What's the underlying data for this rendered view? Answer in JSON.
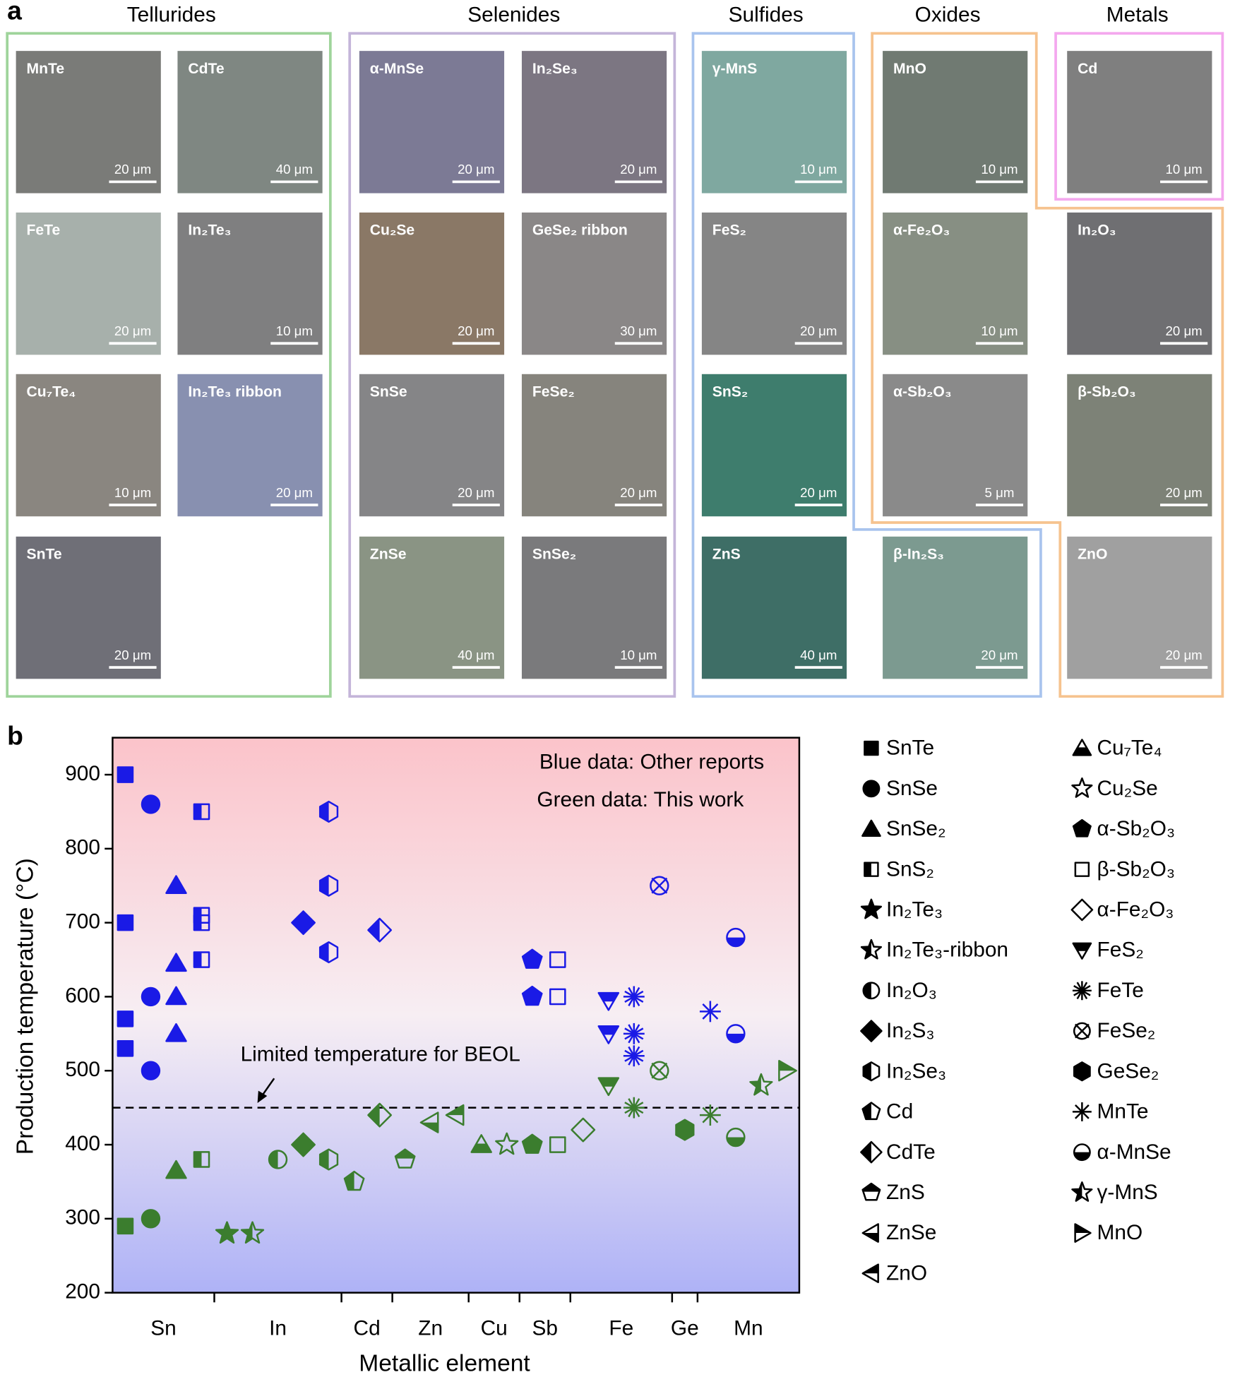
{
  "panel_a": {
    "label": "a",
    "groups": [
      {
        "name": "Tellurides",
        "color": "#9fd49b",
        "tiles": [
          {
            "label": "MnTe",
            "scale": "20 μm",
            "color": "#7a7b78"
          },
          {
            "label": "CdTe",
            "scale": "40 μm",
            "color": "#7f8782"
          },
          {
            "label": "FeTe",
            "scale": "20 μm",
            "color": "#a7b0ab"
          },
          {
            "label": "In₂Te₃",
            "scale": "10 μm",
            "color": "#7f7f80"
          },
          {
            "label": "Cu₇Te₄",
            "scale": "10 μm",
            "color": "#8a8680"
          },
          {
            "label": "In₂Te₃ ribbon",
            "scale": "20 μm",
            "color": "#8890b0"
          },
          {
            "label": "SnTe",
            "scale": "20 μm",
            "color": "#6f6f77"
          }
        ]
      },
      {
        "name": "Selenides",
        "color": "#c4b5d9",
        "tiles": [
          {
            "label": "α-MnSe",
            "scale": "20 μm",
            "color": "#7c7a95"
          },
          {
            "label": "In₂Se₃",
            "scale": "20 μm",
            "color": "#7c7682"
          },
          {
            "label": "Cu₂Se",
            "scale": "20 μm",
            "color": "#8a7866"
          },
          {
            "label": "GeSe₂ ribbon",
            "scale": "30 μm",
            "color": "#8a8787"
          },
          {
            "label": "SnSe",
            "scale": "20 μm",
            "color": "#858587"
          },
          {
            "label": "FeSe₂",
            "scale": "20 μm",
            "color": "#86847d"
          },
          {
            "label": "ZnSe",
            "scale": "40 μm",
            "color": "#8a9484"
          },
          {
            "label": "SnSe₂",
            "scale": "10 μm",
            "color": "#7a7a7c"
          }
        ]
      },
      {
        "name": "Sulfides",
        "color": "#a9c4ee",
        "tiles": [
          {
            "label": "γ-MnS",
            "scale": "10 μm",
            "color": "#7fa8a0"
          },
          {
            "label": "FeS₂",
            "scale": "20 μm",
            "color": "#858585"
          },
          {
            "label": "SnS₂",
            "scale": "20 μm",
            "color": "#3e7d6d"
          },
          {
            "label": "ZnS",
            "scale": "40 μm",
            "color": "#3e6e66"
          },
          {
            "label": "β-In₂S₃",
            "scale": "20 μm",
            "color": "#7c9a90"
          }
        ]
      },
      {
        "name": "Oxides",
        "color": "#f6c38f",
        "tiles": [
          {
            "label": "MnO",
            "scale": "10 μm",
            "color": "#707a72"
          },
          {
            "label": "α-Fe₂O₃",
            "scale": "10 μm",
            "color": "#878f83"
          },
          {
            "label": "In₂O₃",
            "scale": "20 μm",
            "color": "#6f6f72"
          },
          {
            "label": "α-Sb₂O₃",
            "scale": "5 μm",
            "color": "#8a8a8a"
          },
          {
            "label": "β-Sb₂O₃",
            "scale": "20 μm",
            "color": "#7d8277"
          },
          {
            "label": "ZnO",
            "scale": "20 μm",
            "color": "#a0a0a0"
          }
        ]
      },
      {
        "name": "Metals",
        "color": "#f4a8ee",
        "tiles": [
          {
            "label": "Cd",
            "scale": "10 μm",
            "color": "#7f7f7f"
          }
        ]
      }
    ]
  },
  "chart_data": {
    "type": "scatter",
    "panel_label": "b",
    "y_label": "Production temperature (°C)",
    "x_label": "Metallic element",
    "xlim": [
      0.5,
      27.5
    ],
    "ylim": [
      200,
      950
    ],
    "yticks": [
      200,
      300,
      400,
      500,
      600,
      700,
      800,
      900
    ],
    "xticks": [
      {
        "value": 2.5,
        "label": "Sn"
      },
      {
        "value": 7,
        "label": "In"
      },
      {
        "value": 10.5,
        "label": "Cd"
      },
      {
        "value": 13,
        "label": "Zn"
      },
      {
        "value": 15.5,
        "label": "Cu"
      },
      {
        "value": 17.5,
        "label": "Sb"
      },
      {
        "value": 20.5,
        "label": "Fe"
      },
      {
        "value": 23,
        "label": "Ge"
      },
      {
        "value": 25.5,
        "label": "Mn"
      }
    ],
    "x_tick_marks": [
      4.5,
      9.5,
      11.5,
      14.5,
      16.5,
      18.5,
      22.5,
      23.5
    ],
    "annotations": [
      "Blue data: Other reports",
      "Green data: This work"
    ],
    "reference_line": {
      "value": 450,
      "label": "Limited temperature for BEOL"
    },
    "colors": {
      "reported": "#1a1ae6",
      "this_work": "#3b7d2e",
      "legend": "#000000"
    },
    "series": [
      {
        "name": "SnTe",
        "marker": "square",
        "fill": "full",
        "x": 1,
        "reported": [
          900,
          700,
          570,
          530
        ],
        "this_work": [
          290
        ]
      },
      {
        "name": "SnSe",
        "marker": "circle",
        "fill": "full",
        "x": 2,
        "reported": [
          860,
          600,
          500
        ],
        "this_work": [
          300
        ]
      },
      {
        "name": "SnSe₂",
        "marker": "triangle",
        "fill": "full",
        "x": 3,
        "reported": [
          750,
          645,
          600,
          550
        ],
        "this_work": [
          365
        ]
      },
      {
        "name": "SnS₂",
        "marker": "square",
        "fill": "half-left",
        "x": 4,
        "reported": [
          850,
          710,
          700,
          650
        ],
        "this_work": [
          380
        ]
      },
      {
        "name": "In₂Te₃",
        "marker": "star",
        "fill": "full",
        "x": 5,
        "reported": [],
        "this_work": [
          280
        ]
      },
      {
        "name": "In₂Te₃-ribbon",
        "marker": "star",
        "fill": "half-left",
        "x": 6,
        "reported": [],
        "this_work": [
          280
        ]
      },
      {
        "name": "In₂O₃",
        "marker": "circle",
        "fill": "half-left",
        "x": 7,
        "reported": [],
        "this_work": [
          380
        ]
      },
      {
        "name": "In₂S₃",
        "marker": "diamond",
        "fill": "full",
        "x": 8,
        "reported": [
          700
        ],
        "this_work": [
          400
        ]
      },
      {
        "name": "In₂Se₃",
        "marker": "hexagon",
        "fill": "half-left",
        "x": 9,
        "reported": [
          850,
          750,
          660
        ],
        "this_work": [
          380
        ]
      },
      {
        "name": "Cd",
        "marker": "pentagon",
        "fill": "half-left",
        "x": 10,
        "reported": [],
        "this_work": [
          350
        ]
      },
      {
        "name": "CdTe",
        "marker": "diamond",
        "fill": "half-left",
        "x": 11,
        "reported": [
          690
        ],
        "this_work": [
          440
        ]
      },
      {
        "name": "ZnS",
        "marker": "pentagon",
        "fill": "half-top",
        "x": 12,
        "reported": [],
        "this_work": [
          380
        ]
      },
      {
        "name": "ZnSe",
        "marker": "triangle-left",
        "fill": "half-bottom",
        "x": 13,
        "reported": [],
        "this_work": [
          430
        ]
      },
      {
        "name": "ZnO",
        "marker": "triangle-left",
        "fill": "half-top",
        "x": 14,
        "reported": [],
        "this_work": [
          440
        ]
      },
      {
        "name": "Cu₇Te₄",
        "marker": "triangle",
        "fill": "half-bottom",
        "x": 15,
        "reported": [],
        "this_work": [
          400
        ]
      },
      {
        "name": "Cu₂Se",
        "marker": "star",
        "fill": "open",
        "x": 16,
        "reported": [],
        "this_work": [
          400
        ]
      },
      {
        "name": "α-Sb₂O₃",
        "marker": "pentagon",
        "fill": "full",
        "x": 17,
        "reported": [
          650,
          600
        ],
        "this_work": [
          400
        ]
      },
      {
        "name": "β-Sb₂O₃",
        "marker": "square",
        "fill": "open",
        "x": 18,
        "reported": [
          650,
          600
        ],
        "this_work": [
          400
        ]
      },
      {
        "name": "α-Fe₂O₃",
        "marker": "diamond",
        "fill": "open",
        "x": 19,
        "reported": [],
        "this_work": [
          420
        ]
      },
      {
        "name": "FeS₂",
        "marker": "triangle-down",
        "fill": "half-top",
        "x": 20,
        "reported": [
          595,
          550
        ],
        "this_work": [
          480
        ]
      },
      {
        "name": "FeTe",
        "marker": "snowflake",
        "fill": "open",
        "x": 21,
        "reported": [
          600,
          550,
          520
        ],
        "this_work": [
          450
        ]
      },
      {
        "name": "FeSe₂",
        "marker": "circle-x",
        "fill": "open",
        "x": 22,
        "reported": [
          750
        ],
        "this_work": [
          500
        ]
      },
      {
        "name": "GeSe₂",
        "marker": "hexagon",
        "fill": "full",
        "x": 23,
        "reported": [],
        "this_work": [
          420
        ]
      },
      {
        "name": "MnTe",
        "marker": "asterisk",
        "fill": "open",
        "x": 24,
        "reported": [
          580
        ],
        "this_work": [
          440
        ]
      },
      {
        "name": "α-MnSe",
        "marker": "circle",
        "fill": "half-bottom",
        "x": 25,
        "reported": [
          680,
          550
        ],
        "this_work": [
          410
        ]
      },
      {
        "name": "γ-MnS",
        "marker": "star",
        "fill": "half-left",
        "x": 26,
        "reported": [],
        "this_work": [
          480
        ]
      },
      {
        "name": "MnO",
        "marker": "triangle-right",
        "fill": "half-top",
        "x": 27,
        "reported": [],
        "this_work": [
          500
        ]
      }
    ]
  }
}
